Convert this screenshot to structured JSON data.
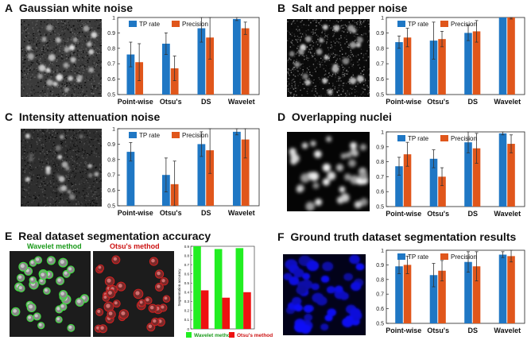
{
  "panels": {
    "A": {
      "letter": "A",
      "title": "Gaussian white noise"
    },
    "B": {
      "letter": "B",
      "title": "Salt and pepper noise"
    },
    "C": {
      "letter": "C",
      "title": "Intensity attenuation noise"
    },
    "D": {
      "letter": "D",
      "title": "Overlapping nuclei"
    },
    "E": {
      "letter": "E",
      "title": "Real dataset segmentation accuracy",
      "wavelet_label": "Wavelet method",
      "otsu_label": "Otsu's method"
    },
    "F": {
      "letter": "F",
      "title": "Ground truth dataset segmentation results"
    }
  },
  "colors": {
    "tp": "#1f77c4",
    "precision": "#e0561b",
    "wavelet_bar": "#22ee22",
    "otsu_bar": "#ee1111",
    "wavelet_text": "#1a9a1a",
    "otsu_text": "#cc1111"
  },
  "chart_data": [
    {
      "id": "A",
      "type": "bar",
      "categories": [
        "Point-wise",
        "Otsu's",
        "DS",
        "Wavelet"
      ],
      "ylim": [
        0.5,
        1
      ],
      "yticks": [
        "0.5",
        "0.6",
        "0.7",
        "0.8",
        "0.9",
        "1"
      ],
      "series": [
        {
          "name": "TP rate",
          "values": [
            0.76,
            0.83,
            0.93,
            0.99
          ],
          "err": [
            0.08,
            0.07,
            0.09,
            0.01
          ]
        },
        {
          "name": "Precision",
          "values": [
            0.71,
            0.67,
            0.87,
            0.93
          ],
          "err": [
            0.12,
            0.08,
            0.14,
            0.04
          ]
        }
      ]
    },
    {
      "id": "B",
      "type": "bar",
      "categories": [
        "Point-wise",
        "Otsu's",
        "DS",
        "Wavelet"
      ],
      "ylim": [
        0.5,
        1
      ],
      "yticks": [
        "0.5",
        "0.6",
        "0.7",
        "0.8",
        "0.9",
        "1"
      ],
      "series": [
        {
          "name": "TP rate",
          "values": [
            0.84,
            0.85,
            0.9,
            1.0
          ],
          "err": [
            0.04,
            0.12,
            0.05,
            0.0
          ]
        },
        {
          "name": "Precision",
          "values": [
            0.87,
            0.86,
            0.91,
            1.0
          ],
          "err": [
            0.06,
            0.05,
            0.07,
            0.01
          ]
        }
      ]
    },
    {
      "id": "C",
      "type": "bar",
      "categories": [
        "Point-wise",
        "Otsu's",
        "DS",
        "Wavelet"
      ],
      "ylim": [
        0.5,
        1
      ],
      "yticks": [
        "0.5",
        "0.6",
        "0.7",
        "0.8",
        "0.9",
        "1"
      ],
      "series": [
        {
          "name": "TP rate",
          "values": [
            0.85,
            0.7,
            0.9,
            0.98
          ],
          "err": [
            0.06,
            0.11,
            0.08,
            0.02
          ]
        },
        {
          "name": "Precision",
          "values": [
            null,
            0.64,
            0.86,
            0.93
          ],
          "err": [
            null,
            0.15,
            0.15,
            0.12
          ]
        }
      ]
    },
    {
      "id": "D",
      "type": "bar",
      "categories": [
        "Point-wise",
        "Otsu's",
        "DS",
        "Wavelet"
      ],
      "ylim": [
        0.5,
        1
      ],
      "yticks": [
        "0.5",
        "0.6",
        "0.7",
        "0.8",
        "0.9",
        "1"
      ],
      "series": [
        {
          "name": "TP rate",
          "values": [
            0.77,
            0.82,
            0.93,
            0.99
          ],
          "err": [
            0.06,
            0.06,
            0.07,
            0.01
          ]
        },
        {
          "name": "Precision",
          "values": [
            0.85,
            0.7,
            0.89,
            0.92
          ],
          "err": [
            0.08,
            0.06,
            0.1,
            0.06
          ]
        }
      ]
    },
    {
      "id": "E",
      "type": "bar",
      "ylabel": "Segmentation accuracy",
      "ylim": [
        0,
        0.9
      ],
      "yticks": [
        "0",
        "0.1",
        "0.2",
        "0.3",
        "0.4",
        "0.5",
        "0.6",
        "0.7",
        "0.8",
        "0.9"
      ],
      "groups": 3,
      "series": [
        {
          "name": "Wavelet method",
          "values": [
            0.9,
            0.87,
            0.88
          ]
        },
        {
          "name": "Otsu's method",
          "values": [
            0.42,
            0.34,
            0.4
          ]
        }
      ]
    },
    {
      "id": "F",
      "type": "bar",
      "categories": [
        "Point-wise",
        "Otsu's",
        "DS",
        "Wavelet"
      ],
      "ylim": [
        0.5,
        1
      ],
      "yticks": [
        "0.5",
        "0.6",
        "0.7",
        "0.8",
        "0.9",
        "1"
      ],
      "series": [
        {
          "name": "TP rate",
          "values": [
            0.89,
            0.83,
            0.92,
            0.97
          ],
          "err": [
            0.05,
            0.08,
            0.07,
            0.02
          ]
        },
        {
          "name": "Precision",
          "values": [
            0.9,
            0.86,
            0.89,
            0.96
          ],
          "err": [
            0.06,
            0.07,
            0.1,
            0.04
          ]
        }
      ]
    }
  ]
}
